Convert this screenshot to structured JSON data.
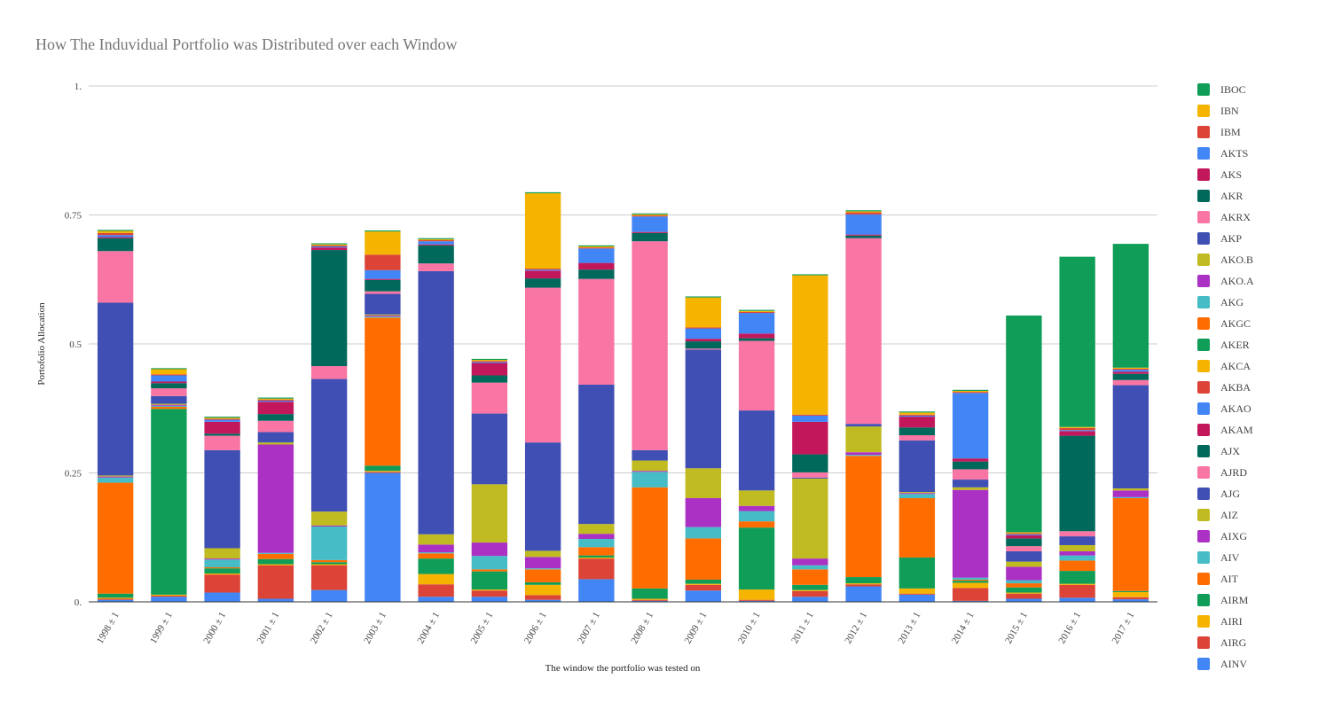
{
  "chart_data": {
    "type": "bar",
    "stacked": true,
    "title": "How The Induvidual Portfolio was Distributed over each Window",
    "xlabel": "The window the portfolio was tested on",
    "ylabel": "Portofolio Allocation",
    "ylim": [
      0,
      1
    ],
    "yticks": [
      {
        "value": 0,
        "label": "0."
      },
      {
        "value": 0.25,
        "label": "0.25"
      },
      {
        "value": 0.5,
        "label": "0.5"
      },
      {
        "value": 0.75,
        "label": "0.75"
      },
      {
        "value": 1,
        "label": "1."
      }
    ],
    "grid": true,
    "legend_position": "right",
    "categories": [
      "1998 ± 1",
      "1999 ± 1",
      "2000 ± 1",
      "2001 ± 1",
      "2002 ± 1",
      "2003 ± 1",
      "2004 ± 1",
      "2005 ± 1",
      "2006 ± 1",
      "2007 ± 1",
      "2008 ± 1",
      "2009 ± 1",
      "2010 ± 1",
      "2011 ± 1",
      "2012 ± 1",
      "2013 ± 1",
      "2014 ± 1",
      "2015 ± 1",
      "2016 ± 1",
      "2017 ± 1"
    ],
    "series": [
      {
        "name": "AINV",
        "color": "#4285f4",
        "values": [
          0.004,
          0.01,
          0.018,
          0.006,
          0.023,
          0.25,
          0.01,
          0.01,
          0.004,
          0.044,
          0.002,
          0.022,
          0.002,
          0.01,
          0.03,
          0.014,
          0.002,
          0.006,
          0.008,
          0.005
        ]
      },
      {
        "name": "AIRG",
        "color": "#db4437",
        "values": [
          0.002,
          0.002,
          0.035,
          0.065,
          0.048,
          0.002,
          0.024,
          0.012,
          0.009,
          0.04,
          0.002,
          0.011,
          0.002,
          0.011,
          0.004,
          0.002,
          0.025,
          0.01,
          0.025,
          0.004
        ]
      },
      {
        "name": "AIRI",
        "color": "#f4b400",
        "values": [
          0.002,
          0.002,
          0.002,
          0.002,
          0.002,
          0.002,
          0.02,
          0.002,
          0.02,
          0.002,
          0.002,
          0.002,
          0.02,
          0.002,
          0.002,
          0.01,
          0.01,
          0.002,
          0.002,
          0.01
        ]
      },
      {
        "name": "AIRM",
        "color": "#0f9d58",
        "values": [
          0.008,
          0.36,
          0.01,
          0.01,
          0.004,
          0.01,
          0.03,
          0.035,
          0.005,
          0.004,
          0.02,
          0.008,
          0.12,
          0.01,
          0.012,
          0.06,
          0.004,
          0.01,
          0.025,
          0.002
        ]
      },
      {
        "name": "AIT",
        "color": "#ff6d00",
        "values": [
          0.215,
          0.004,
          0.002,
          0.01,
          0.004,
          0.287,
          0.01,
          0.004,
          0.025,
          0.016,
          0.196,
          0.08,
          0.012,
          0.03,
          0.235,
          0.115,
          0.002,
          0.008,
          0.02,
          0.18
        ]
      },
      {
        "name": "AIV",
        "color": "#46bdc6",
        "values": [
          0.01,
          0.002,
          0.015,
          0.002,
          0.065,
          0.002,
          0.002,
          0.026,
          0.002,
          0.016,
          0.03,
          0.022,
          0.02,
          0.008,
          0.002,
          0.008,
          0.004,
          0.006,
          0.01,
          0.002
        ]
      },
      {
        "name": "AIXG",
        "color": "#ab30c4",
        "values": [
          0.002,
          0.002,
          0.002,
          0.21,
          0.002,
          0.002,
          0.015,
          0.026,
          0.022,
          0.01,
          0.002,
          0.056,
          0.01,
          0.013,
          0.005,
          0.002,
          0.17,
          0.026,
          0.008,
          0.013
        ]
      },
      {
        "name": "AIZ",
        "color": "#c0bb21",
        "values": [
          0.002,
          0.002,
          0.02,
          0.004,
          0.027,
          0.002,
          0.02,
          0.113,
          0.012,
          0.019,
          0.02,
          0.058,
          0.03,
          0.155,
          0.05,
          0.002,
          0.005,
          0.01,
          0.012,
          0.004
        ]
      },
      {
        "name": "AJG",
        "color": "#3f4fb3",
        "values": [
          0.335,
          0.015,
          0.19,
          0.02,
          0.257,
          0.04,
          0.51,
          0.137,
          0.21,
          0.27,
          0.02,
          0.23,
          0.155,
          0.002,
          0.005,
          0.1,
          0.015,
          0.02,
          0.017,
          0.2
        ]
      },
      {
        "name": "AJRD",
        "color": "#f875a4",
        "values": [
          0.1,
          0.015,
          0.028,
          0.022,
          0.025,
          0.005,
          0.015,
          0.06,
          0.3,
          0.205,
          0.405,
          0.002,
          0.135,
          0.01,
          0.36,
          0.01,
          0.02,
          0.01,
          0.01,
          0.01
        ]
      },
      {
        "name": "AJX",
        "color": "#00695c",
        "values": [
          0.025,
          0.01,
          0.004,
          0.013,
          0.225,
          0.022,
          0.035,
          0.014,
          0.018,
          0.018,
          0.016,
          0.014,
          0.005,
          0.035,
          0.005,
          0.015,
          0.015,
          0.015,
          0.185,
          0.012
        ]
      },
      {
        "name": "AKAM",
        "color": "#c2185b",
        "values": [
          0.002,
          0.003,
          0.023,
          0.024,
          0.005,
          0.002,
          0.002,
          0.024,
          0.015,
          0.013,
          0.002,
          0.005,
          0.009,
          0.063,
          0.002,
          0.021,
          0.006,
          0.006,
          0.009,
          0.004
        ]
      },
      {
        "name": "AKAO",
        "color": "#4285f4",
        "values": [
          0.004,
          0.012,
          0.004,
          0.002,
          0.002,
          0.017,
          0.006,
          0.002,
          0.002,
          0.028,
          0.03,
          0.02,
          0.04,
          0.012,
          0.039,
          0.002,
          0.127,
          0.002,
          0.002,
          0.004
        ]
      },
      {
        "name": "AKBA",
        "color": "#db4437",
        "values": [
          0.004,
          0.002,
          0.002,
          0.002,
          0.002,
          0.03,
          0.002,
          0.002,
          0.002,
          0.002,
          0.002,
          0.002,
          0.002,
          0.002,
          0.004,
          0.002,
          0.002,
          0.002,
          0.004,
          0.002
        ]
      },
      {
        "name": "AKCA",
        "color": "#f4b400",
        "values": [
          0.004,
          0.01,
          0.002,
          0.002,
          0.002,
          0.045,
          0.002,
          0.002,
          0.146,
          0.002,
          0.002,
          0.058,
          0.002,
          0.27,
          0.002,
          0.004,
          0.002,
          0.002,
          0.002,
          0.002
        ]
      },
      {
        "name": "AKER",
        "color": "#0f9d58",
        "values": [
          0.002,
          0.002,
          0.002,
          0.002,
          0.002,
          0.002,
          0.002,
          0.002,
          0.002,
          0.002,
          0.002,
          0.002,
          0.002,
          0.002,
          0.002,
          0.002,
          0.002,
          0.42,
          0.33,
          0.24
        ]
      }
    ]
  },
  "legend": {
    "items": [
      {
        "label": "IBOC",
        "color": "#0f9d58"
      },
      {
        "label": "IBN",
        "color": "#f4b400"
      },
      {
        "label": "IBM",
        "color": "#db4437"
      },
      {
        "label": "AKTS",
        "color": "#4285f4"
      },
      {
        "label": "AKS",
        "color": "#c2185b"
      },
      {
        "label": "AKR",
        "color": "#00695c"
      },
      {
        "label": "AKRX",
        "color": "#f875a4"
      },
      {
        "label": "AKP",
        "color": "#3f4fb3"
      },
      {
        "label": "AKO.B",
        "color": "#c0bb21"
      },
      {
        "label": "AKO.A",
        "color": "#ab30c4"
      },
      {
        "label": "AKG",
        "color": "#46bdc6"
      },
      {
        "label": "AKGC",
        "color": "#ff6d00"
      },
      {
        "label": "AKER",
        "color": "#0f9d58"
      },
      {
        "label": "AKCA",
        "color": "#f4b400"
      },
      {
        "label": "AKBA",
        "color": "#db4437"
      },
      {
        "label": "AKAO",
        "color": "#4285f4"
      },
      {
        "label": "AKAM",
        "color": "#c2185b"
      },
      {
        "label": "AJX",
        "color": "#00695c"
      },
      {
        "label": "AJRD",
        "color": "#f875a4"
      },
      {
        "label": "AJG",
        "color": "#3f4fb3"
      },
      {
        "label": "AIZ",
        "color": "#c0bb21"
      },
      {
        "label": "AIXG",
        "color": "#ab30c4"
      },
      {
        "label": "AIV",
        "color": "#46bdc6"
      },
      {
        "label": "AIT",
        "color": "#ff6d00"
      },
      {
        "label": "AIRM",
        "color": "#0f9d58"
      },
      {
        "label": "AIRI",
        "color": "#f4b400"
      },
      {
        "label": "AIRG",
        "color": "#db4437"
      },
      {
        "label": "AINV",
        "color": "#4285f4"
      }
    ]
  }
}
